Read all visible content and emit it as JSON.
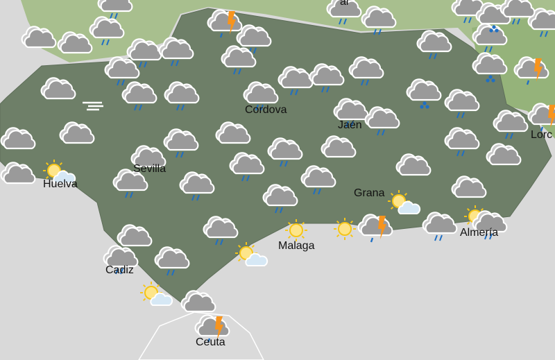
{
  "map": {
    "region": "Andalusia",
    "colors": {
      "land": "#6e7f68",
      "north_land": "#a8bf8e",
      "east_land": "#95b37a",
      "sea": "#d9d9d9",
      "cloud": "#9a9a9a",
      "rain": "#1f6fc4",
      "lightning": "#f7941d",
      "sun": "#f5c518"
    },
    "cities": [
      {
        "name": "Cordova"
      },
      {
        "name": "Jaén"
      },
      {
        "name": "Sevilla"
      },
      {
        "name": "Huelva"
      },
      {
        "name": "Grana"
      },
      {
        "name": "Malaga"
      },
      {
        "name": "Almería"
      },
      {
        "name": "Cadiz"
      },
      {
        "name": "Ceuta"
      },
      {
        "name": "Lorc"
      },
      {
        "name": "al"
      }
    ],
    "icons": [
      "rain",
      "rain",
      "cloud",
      "cloud",
      "rain",
      "rain",
      "rain",
      "storm",
      "rain",
      "rain",
      "cloud",
      "wind",
      "rain",
      "rain",
      "rain",
      "rain",
      "rain",
      "rain",
      "rain",
      "snow",
      "rain",
      "snow",
      "rain",
      "cloud",
      "rain",
      "rain",
      "cloud",
      "rain",
      "rain",
      "cloud",
      "rain",
      "cloud",
      "rain",
      "rain",
      "rain",
      "cloud",
      "rain",
      "cloud",
      "cloud",
      "rain",
      "cloud",
      "sun-cloud",
      "rain",
      "rain",
      "rain",
      "suncloud",
      "sun",
      "sun",
      "storm",
      "rain",
      "sun-cloud",
      "sun-cloud",
      "rain",
      "cloud",
      "rain",
      "sun-cloud",
      "cloud",
      "storm",
      "rain",
      "snow",
      "storm",
      "rain",
      "storm",
      "rain",
      "rain",
      "cloud",
      "rain"
    ]
  }
}
